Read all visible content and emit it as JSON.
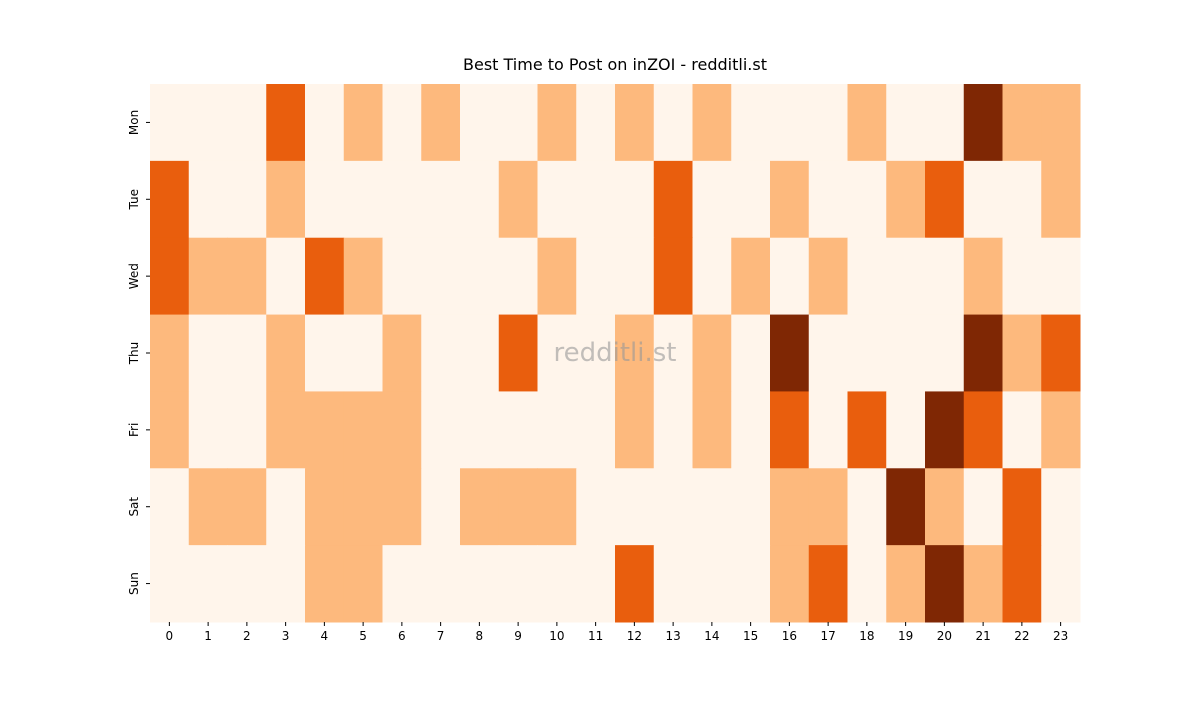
{
  "chart_data": {
    "type": "heatmap",
    "title": "Best Time to Post on inZOI - redditli.st",
    "watermark": "redditli.st",
    "categories": [
      "0",
      "1",
      "2",
      "3",
      "4",
      "5",
      "6",
      "7",
      "8",
      "9",
      "10",
      "11",
      "12",
      "13",
      "14",
      "15",
      "16",
      "17",
      "18",
      "19",
      "20",
      "21",
      "22",
      "23"
    ],
    "rows": [
      "Mon",
      "Tue",
      "Wed",
      "Thu",
      "Fri",
      "Sat",
      "Sun"
    ],
    "values": [
      [
        0,
        0,
        0,
        2,
        0,
        1,
        0,
        1,
        0,
        0,
        1,
        0,
        1,
        0,
        1,
        0,
        0,
        0,
        1,
        0,
        0,
        3,
        1,
        1
      ],
      [
        2,
        0,
        0,
        1,
        0,
        0,
        0,
        0,
        0,
        1,
        0,
        0,
        0,
        2,
        0,
        0,
        1,
        0,
        0,
        1,
        2,
        0,
        0,
        1
      ],
      [
        2,
        1,
        1,
        0,
        2,
        1,
        0,
        0,
        0,
        0,
        1,
        0,
        0,
        2,
        0,
        1,
        0,
        1,
        0,
        0,
        0,
        1,
        0,
        0
      ],
      [
        1,
        0,
        0,
        1,
        0,
        0,
        1,
        0,
        0,
        2,
        0,
        0,
        1,
        0,
        1,
        0,
        3,
        0,
        0,
        0,
        0,
        3,
        1,
        2
      ],
      [
        1,
        0,
        0,
        1,
        1,
        1,
        1,
        0,
        0,
        0,
        0,
        0,
        1,
        0,
        1,
        0,
        2,
        0,
        2,
        0,
        3,
        2,
        0,
        1
      ],
      [
        0,
        1,
        1,
        0,
        1,
        1,
        1,
        0,
        1,
        1,
        1,
        0,
        0,
        0,
        0,
        0,
        1,
        1,
        0,
        3,
        1,
        0,
        2,
        0
      ],
      [
        0,
        0,
        0,
        0,
        1,
        1,
        0,
        0,
        0,
        0,
        0,
        0,
        2,
        0,
        0,
        0,
        1,
        2,
        0,
        1,
        3,
        1,
        2,
        0
      ]
    ],
    "colors": [
      "#fff5eb",
      "#fdb97d",
      "#e95e0d",
      "#7f2704"
    ]
  }
}
